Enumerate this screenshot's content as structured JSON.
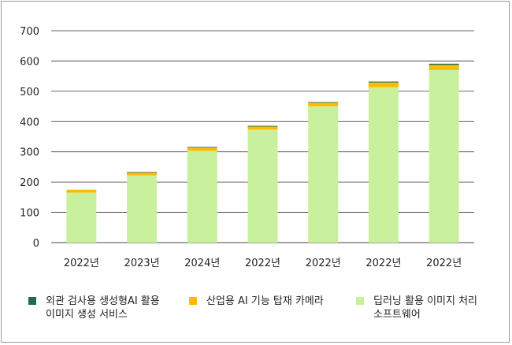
{
  "chart_data": {
    "type": "bar",
    "stacked": true,
    "categories": [
      "2022년",
      "2023년",
      "2024년",
      "2022년",
      "2022년",
      "2022년",
      "2022년"
    ],
    "series": [
      {
        "name": "딥러닝 활용 이미지 처리\n소프트웨어",
        "color": "#c9f09c",
        "values": [
          165,
          222,
          303,
          373,
          450,
          513,
          570
        ]
      },
      {
        "name": "산업용 AI 기능 탑재 카메라",
        "color": "#fbbc09",
        "values": [
          10,
          10,
          11,
          11,
          12,
          16,
          17
        ]
      },
      {
        "name": "외관 검사용 생성형AI 활용\n이미지 생성 서비스",
        "color": "#1f6b4a",
        "values": [
          0,
          1,
          2,
          2,
          2,
          3,
          4
        ]
      }
    ],
    "ylim": [
      0,
      700
    ],
    "yticks": [
      0,
      100,
      200,
      300,
      400,
      500,
      600,
      700
    ],
    "grid": true,
    "legend_position": "bottom"
  }
}
